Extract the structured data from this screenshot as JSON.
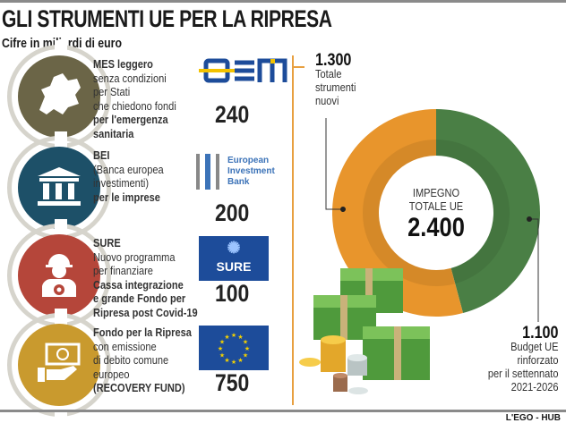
{
  "title": "GLI STRUMENTI UE PER LA RIPRESA",
  "subtitle": "Cifre in miliardi di euro",
  "items": [
    {
      "lines": [
        {
          "t": "MES leggero",
          "b": true
        },
        {
          "t": "senza condizioni"
        },
        {
          "t": "per Stati"
        },
        {
          "t": "che chiedono fondi"
        },
        {
          "t": "per l'emergenza",
          "b": true
        },
        {
          "t": "sanitaria",
          "b": true
        }
      ],
      "logo": "esm",
      "value": "240",
      "icon": "europe-map-icon",
      "color": "#6b6547"
    },
    {
      "lines": [
        {
          "t": "BEI",
          "b": true
        },
        {
          "t": "(Banca europea"
        },
        {
          "t": "investimenti)"
        },
        {
          "t": "per le imprese",
          "b": true
        }
      ],
      "logo": "European Investment Bank",
      "logo_lines": [
        "European",
        "Investment",
        "Bank"
      ],
      "value": "200",
      "icon": "bank-building-icon",
      "color": "#1d5068"
    },
    {
      "lines": [
        {
          "t": "SURE",
          "b": true
        },
        {
          "t": "Nuovo programma"
        },
        {
          "t": "per finanziare",
          "b": false
        },
        {
          "t": "Cassa integrazione",
          "b": true
        },
        {
          "t": "e grande Fondo per",
          "b": true
        },
        {
          "t": "Ripresa post Covid-19",
          "b": true
        }
      ],
      "logo": "SURE",
      "value": "100",
      "icon": "worker-gear-icon",
      "color": "#b5463a"
    },
    {
      "lines": [
        {
          "t": "Fondo per la Ripresa",
          "b": true
        },
        {
          "t": "con emissione"
        },
        {
          "t": "di debito comune"
        },
        {
          "t": "europeo"
        },
        {
          "t": "(RECOVERY FUND)",
          "b": true
        }
      ],
      "logo": "eu-flag",
      "value": "750",
      "icon": "money-hand-icon",
      "color": "#c99a2e"
    }
  ],
  "chart_data": {
    "type": "pie",
    "title": "IMPEGNO TOTALE UE",
    "center_label_lines": [
      "IMPEGNO",
      "TOTALE UE"
    ],
    "total": "2.400",
    "slices": [
      {
        "name": "Budget UE rinforzato per il settennato 2021-2026",
        "value": 1100,
        "label": "1.100",
        "desc": [
          "Budget UE",
          "rinforzato",
          "per il settennato",
          "2021-2026"
        ],
        "color": "#4a7f45"
      },
      {
        "name": "Totale strumenti nuovi",
        "value": 1300,
        "label": "1.300",
        "desc": [
          "Totale",
          "strumenti",
          "nuovi"
        ],
        "color": "#e8952c"
      }
    ]
  },
  "credit": "L'EGO - HUB"
}
